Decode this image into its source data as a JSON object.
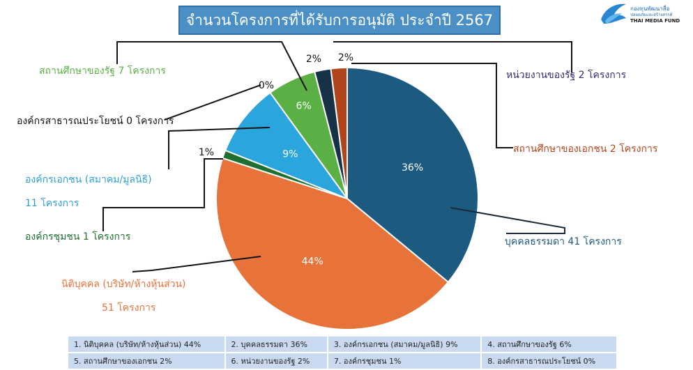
{
  "title": "จำนวนโครงการที่ได้รับการอนุมัติ ประจำปี 2567",
  "logo": {
    "line1": "กองทุนพัฒนาสื่อ",
    "line2": "ปลอดภัยและสร้างสรรค์",
    "line3": "THAI MEDIA FUND"
  },
  "chart_data": {
    "type": "pie",
    "slices": [
      {
        "pct": 36,
        "value_label": "36%",
        "label": "บุคคลธรรมดา 41 โครงการ",
        "label2": "",
        "color": "#1d5a80",
        "text_color": "#1d5a80",
        "leader_color": "#1a2a3a"
      },
      {
        "pct": 44,
        "value_label": "44%",
        "label": "นิติบุคคล (บริษัท/ห้างหุ้นส่วน)",
        "label2": "51 โครงการ",
        "color": "#e8733a",
        "text_color": "#e8733a",
        "leader_color": "#111111"
      },
      {
        "pct": 1,
        "value_label": "1%",
        "label": "องค์กรชุมชน 1 โครงการ",
        "label2": "",
        "color": "#1f6f30",
        "text_color": "#1f6f30",
        "leader_color": "#111111"
      },
      {
        "pct": 9,
        "value_label": "9%",
        "label": "องค์กรเอกชน (สมาคม/มูลนิธิ)",
        "label2": "11 โครงการ",
        "color": "#2aa6dc",
        "text_color": "#2e9fd6",
        "leader_color": "#111111"
      },
      {
        "pct": 0,
        "value_label": "0%",
        "label": "องค์กรสาธารณประโยชน์ 0 โครงการ",
        "label2": "",
        "color": "#000000",
        "text_color": "#111111",
        "leader_color": "#111111"
      },
      {
        "pct": 6,
        "value_label": "6%",
        "label": "สถานศึกษาของรัฐ 7 โครงการ",
        "label2": "",
        "color": "#5ab045",
        "text_color": "#5ab045",
        "leader_color": "#111111"
      },
      {
        "pct": 2,
        "value_label": "2%",
        "label": "หน่วยงานของรัฐ 2 โครงการ",
        "label2": "",
        "color": "#173247",
        "text_color": "#3a2a6e",
        "leader_color": "#111111"
      },
      {
        "pct": 2,
        "value_label": "2%",
        "label": "สถานศึกษาของเอกชน 2 โครงการ",
        "label2": "",
        "color": "#b2441c",
        "text_color": "#b2441c",
        "leader_color": "#111111"
      }
    ]
  },
  "legend": [
    [
      "1. นิติบุคคล (บริษัท/ห้างหุ้นส่วน) 44%",
      "2. บุคคลธรรมดา 36%",
      "3. องค์กรเอกชน (สมาคม/มูลนิธิ) 9%",
      "4. สถานศึกษาของรัฐ 6%"
    ],
    [
      "5. สถานศึกษาของเอกชน 2%",
      "6. หน่วยงานของรัฐ 2%",
      "7. องค์กรชุมชน 1%",
      "8. องค์กรสาธารณประโยชน์ 0%"
    ]
  ]
}
